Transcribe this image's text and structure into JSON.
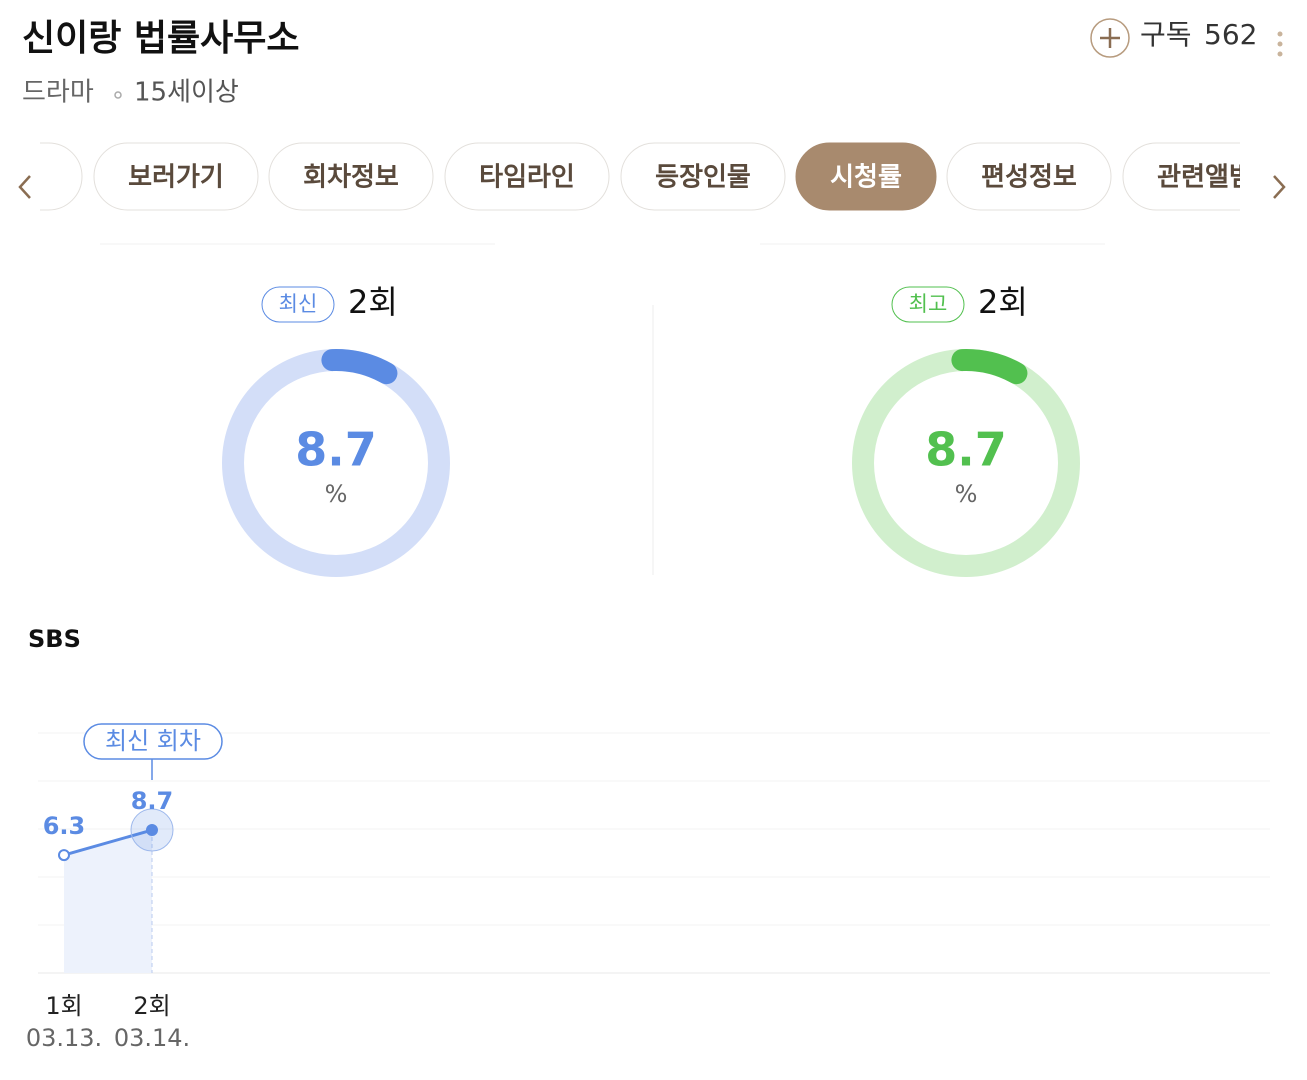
{
  "header": {
    "title": "신이랑 법률사무소",
    "genre": "드라마",
    "age_rating": "15세이상",
    "subscribe": "구독",
    "subscriber_count": 562
  },
  "tabs": {
    "items": [
      "보러가기",
      "회차정보",
      "타임라인",
      "등장인물",
      "시청률",
      "편성정보",
      "관련앨범"
    ],
    "active": 4
  },
  "gauges": [
    {
      "badge": "최신",
      "episode": "2회",
      "value": 8.7,
      "unit": "%",
      "range": [
        0,
        100
      ],
      "color": "#5b8be3",
      "track_color": "#d3def8"
    },
    {
      "badge": "최고",
      "episode": "2회",
      "value": 8.7,
      "unit": "%",
      "range": [
        0,
        100
      ],
      "color": "#52c04f",
      "track_color": "#d1efcd"
    }
  ],
  "chart_data": {
    "type": "line",
    "title": "SBS",
    "categories": [
      "1회",
      "2회"
    ],
    "dates": [
      "03.13.",
      "03.14."
    ],
    "series": [
      {
        "name": "SBS",
        "color": "#5b8be3",
        "values": [
          6.3,
          8.7
        ]
      }
    ],
    "annotation": "최신 회차",
    "ylim": [
      -5,
      18
    ]
  }
}
